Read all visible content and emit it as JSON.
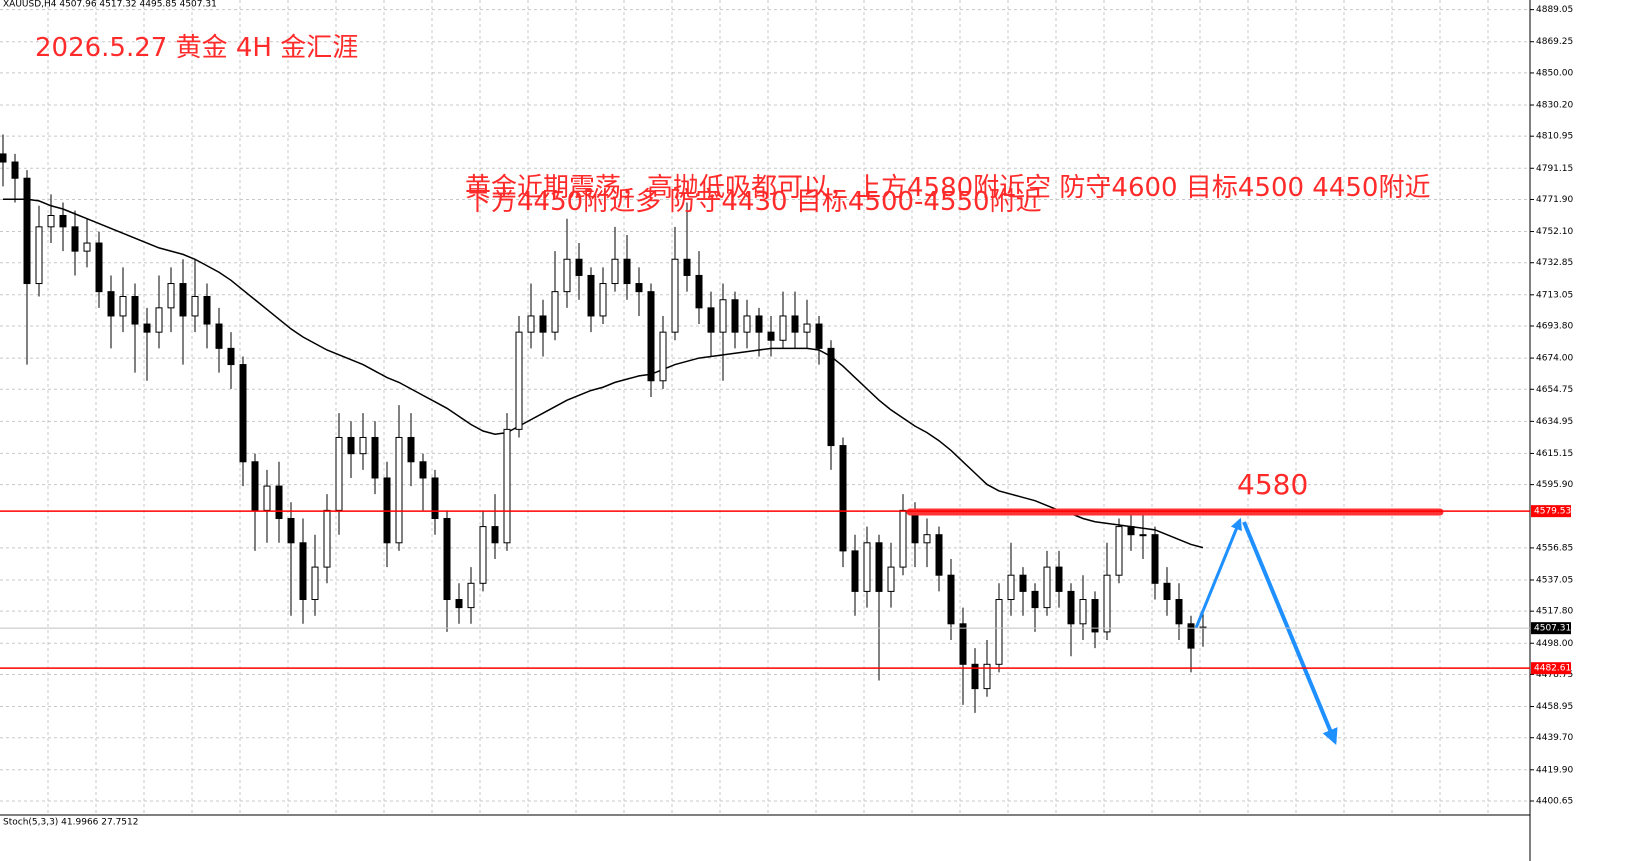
{
  "chart_data": {
    "type": "candlestick",
    "symbol_info": "XAUUSD,H4  4507.96 4517.32 4495.85 4507.31",
    "title": "2026.5.27 黄金 4H 金汇涯",
    "annotations": [
      "黄金近期震荡，高抛低吸都可以，上方4580附近空 防守4600 目标4500 4450附近",
      "下方4450附近多 防守4430 目标4500-4550附近",
      "4580"
    ],
    "open": [
      4800,
      4795,
      4785,
      4720,
      4755,
      4762,
      4755,
      4740,
      4745,
      4715,
      4700,
      4712,
      4695,
      4690,
      4705,
      4720,
      4700,
      4712,
      4695,
      4680,
      4670,
      4610,
      4580,
      4595,
      4575,
      4560,
      4525,
      4545,
      4580,
      4625,
      4615,
      4625,
      4600,
      4560,
      4625,
      4610,
      4600,
      4575,
      4525,
      4520,
      4535,
      4570,
      4560,
      4630,
      4690,
      4700,
      4690,
      4715,
      4735,
      4725,
      4700,
      4720,
      4735,
      4720,
      4715,
      4660,
      4690,
      4735,
      4725,
      4705,
      4690,
      4710,
      4690,
      4700,
      4690,
      4685,
      4700,
      4690,
      4695,
      4680,
      4620,
      4555,
      4530,
      4560,
      4530,
      4545,
      4580,
      4560,
      4565,
      4540,
      4510,
      4485,
      4470,
      4485,
      4525,
      4540,
      4530,
      4520,
      4545,
      4530,
      4510,
      4525,
      4505,
      4540,
      4570,
      4565,
      4565,
      4535,
      4525,
      4510,
      4507.96
    ],
    "high": [
      4812,
      4800,
      4790,
      4768,
      4775,
      4770,
      4765,
      4760,
      4752,
      4725,
      4730,
      4720,
      4705,
      4725,
      4730,
      4735,
      4735,
      4720,
      4705,
      4690,
      4675,
      4615,
      4605,
      4610,
      4585,
      4575,
      4565,
      4590,
      4640,
      4635,
      4640,
      4635,
      4610,
      4645,
      4640,
      4615,
      4605,
      4580,
      4535,
      4545,
      4580,
      4590,
      4640,
      4700,
      4720,
      4710,
      4740,
      4760,
      4745,
      4730,
      4730,
      4755,
      4750,
      4730,
      4720,
      4700,
      4755,
      4770,
      4740,
      4715,
      4720,
      4715,
      4710,
      4705,
      4700,
      4715,
      4715,
      4710,
      4700,
      4685,
      4625,
      4565,
      4570,
      4565,
      4560,
      4590,
      4585,
      4575,
      4570,
      4550,
      4520,
      4495,
      4500,
      4535,
      4560,
      4545,
      4535,
      4555,
      4555,
      4535,
      4540,
      4530,
      4560,
      4575,
      4580,
      4580,
      4570,
      4545,
      4535,
      4515,
      4517.32
    ],
    "low": [
      4780,
      4770,
      4670,
      4712,
      4745,
      4740,
      4725,
      4730,
      4705,
      4680,
      4690,
      4665,
      4660,
      4680,
      4690,
      4670,
      4690,
      4680,
      4665,
      4655,
      4595,
      4555,
      4560,
      4560,
      4515,
      4510,
      4515,
      4535,
      4565,
      4600,
      4605,
      4590,
      4545,
      4555,
      4595,
      4580,
      4565,
      4505,
      4510,
      4510,
      4530,
      4550,
      4555,
      4625,
      4680,
      4675,
      4685,
      4705,
      4710,
      4690,
      4695,
      4715,
      4710,
      4700,
      4650,
      4655,
      4685,
      4715,
      4695,
      4675,
      4660,
      4680,
      4680,
      4675,
      4675,
      4680,
      4680,
      4680,
      4670,
      4605,
      4545,
      4515,
      4520,
      4475,
      4520,
      4540,
      4545,
      4545,
      4530,
      4500,
      4460,
      4455,
      4465,
      4480,
      4515,
      4515,
      4505,
      4515,
      4520,
      4490,
      4500,
      4495,
      4500,
      4535,
      4555,
      4550,
      4525,
      4515,
      4500,
      4480,
      4495.85
    ],
    "close": [
      4795,
      4785,
      4720,
      4755,
      4762,
      4755,
      4740,
      4745,
      4715,
      4700,
      4712,
      4695,
      4690,
      4705,
      4720,
      4700,
      4712,
      4695,
      4680,
      4670,
      4610,
      4580,
      4595,
      4575,
      4560,
      4525,
      4545,
      4580,
      4625,
      4615,
      4625,
      4600,
      4560,
      4625,
      4610,
      4600,
      4575,
      4525,
      4520,
      4535,
      4570,
      4560,
      4630,
      4690,
      4700,
      4690,
      4715,
      4735,
      4725,
      4700,
      4720,
      4735,
      4720,
      4715,
      4660,
      4690,
      4735,
      4725,
      4705,
      4690,
      4710,
      4690,
      4700,
      4690,
      4685,
      4700,
      4690,
      4695,
      4680,
      4620,
      4555,
      4530,
      4560,
      4530,
      4545,
      4580,
      4560,
      4565,
      4540,
      4510,
      4485,
      4470,
      4485,
      4525,
      4540,
      4530,
      4520,
      4545,
      4530,
      4510,
      4525,
      4505,
      4540,
      4570,
      4565,
      4565,
      4535,
      4525,
      4510,
      4495,
      4507.31
    ],
    "ma": {
      "color": "#000000",
      "values": [
        4772,
        4772,
        4772,
        4771,
        4768,
        4766,
        4763,
        4760,
        4757,
        4754,
        4751,
        4748,
        4745,
        4742,
        4740,
        4738,
        4735,
        4731,
        4727,
        4722,
        4716,
        4710,
        4704,
        4698,
        4692,
        4687,
        4683,
        4679,
        4676,
        4673,
        4670,
        4666,
        4662,
        4659,
        4655,
        4651,
        4647,
        4643,
        4638,
        4633,
        4629,
        4627,
        4628,
        4632,
        4636,
        4640,
        4644,
        4648,
        4651,
        4654,
        4656,
        4659,
        4661,
        4663,
        4664,
        4667,
        4670,
        4672,
        4674,
        4675,
        4676,
        4677,
        4678,
        4679,
        4680,
        4680,
        4680,
        4680,
        4679,
        4675,
        4669,
        4662,
        4655,
        4648,
        4642,
        4637,
        4632,
        4628,
        4623,
        4617,
        4610,
        4603,
        4596,
        4592,
        4590,
        4588,
        4586,
        4583,
        4580,
        4578,
        4575,
        4573,
        4572,
        4571,
        4570,
        4569,
        4568,
        4565,
        4562,
        4559,
        4557
      ]
    },
    "up_color": "#ffffff",
    "down_color": "#000000",
    "hlines": [
      {
        "value": 4579.53,
        "color": "#ff0000"
      },
      {
        "value": 4482.61,
        "color": "#ff0000"
      }
    ],
    "current_price": 4507.31,
    "ylim": [
      4392,
      4895
    ],
    "yticks": [
      4889.05,
      4869.25,
      {
        "value": 4850,
        "label": "4850.00"
      },
      {
        "value": 4830.2,
        "label": "4830.20"
      },
      4810.95,
      4791.15,
      {
        "value": 4771.9,
        "label": "4771.90"
      },
      {
        "value": 4752.1,
        "label": "4752.10"
      },
      4732.85,
      4713.05,
      {
        "value": 4693.8,
        "label": "4693.80"
      },
      {
        "value": 4674,
        "label": "4674.00"
      },
      4654.75,
      4634.95,
      4615.15,
      {
        "value": 4595.9,
        "label": "4595.90"
      },
      4556.85,
      4537.05,
      {
        "value": 4517.8,
        "label": "4517.80"
      },
      {
        "value": 4498,
        "label": "4498.00"
      },
      4478.75,
      4458.95,
      {
        "value": 4439.7,
        "label": "4439.70"
      },
      {
        "value": 4419.9,
        "label": "4419.90"
      },
      4400.65
    ],
    "grid": true,
    "indicator_label": "Stoch(5,3,3) 41.9966 27.7512"
  }
}
